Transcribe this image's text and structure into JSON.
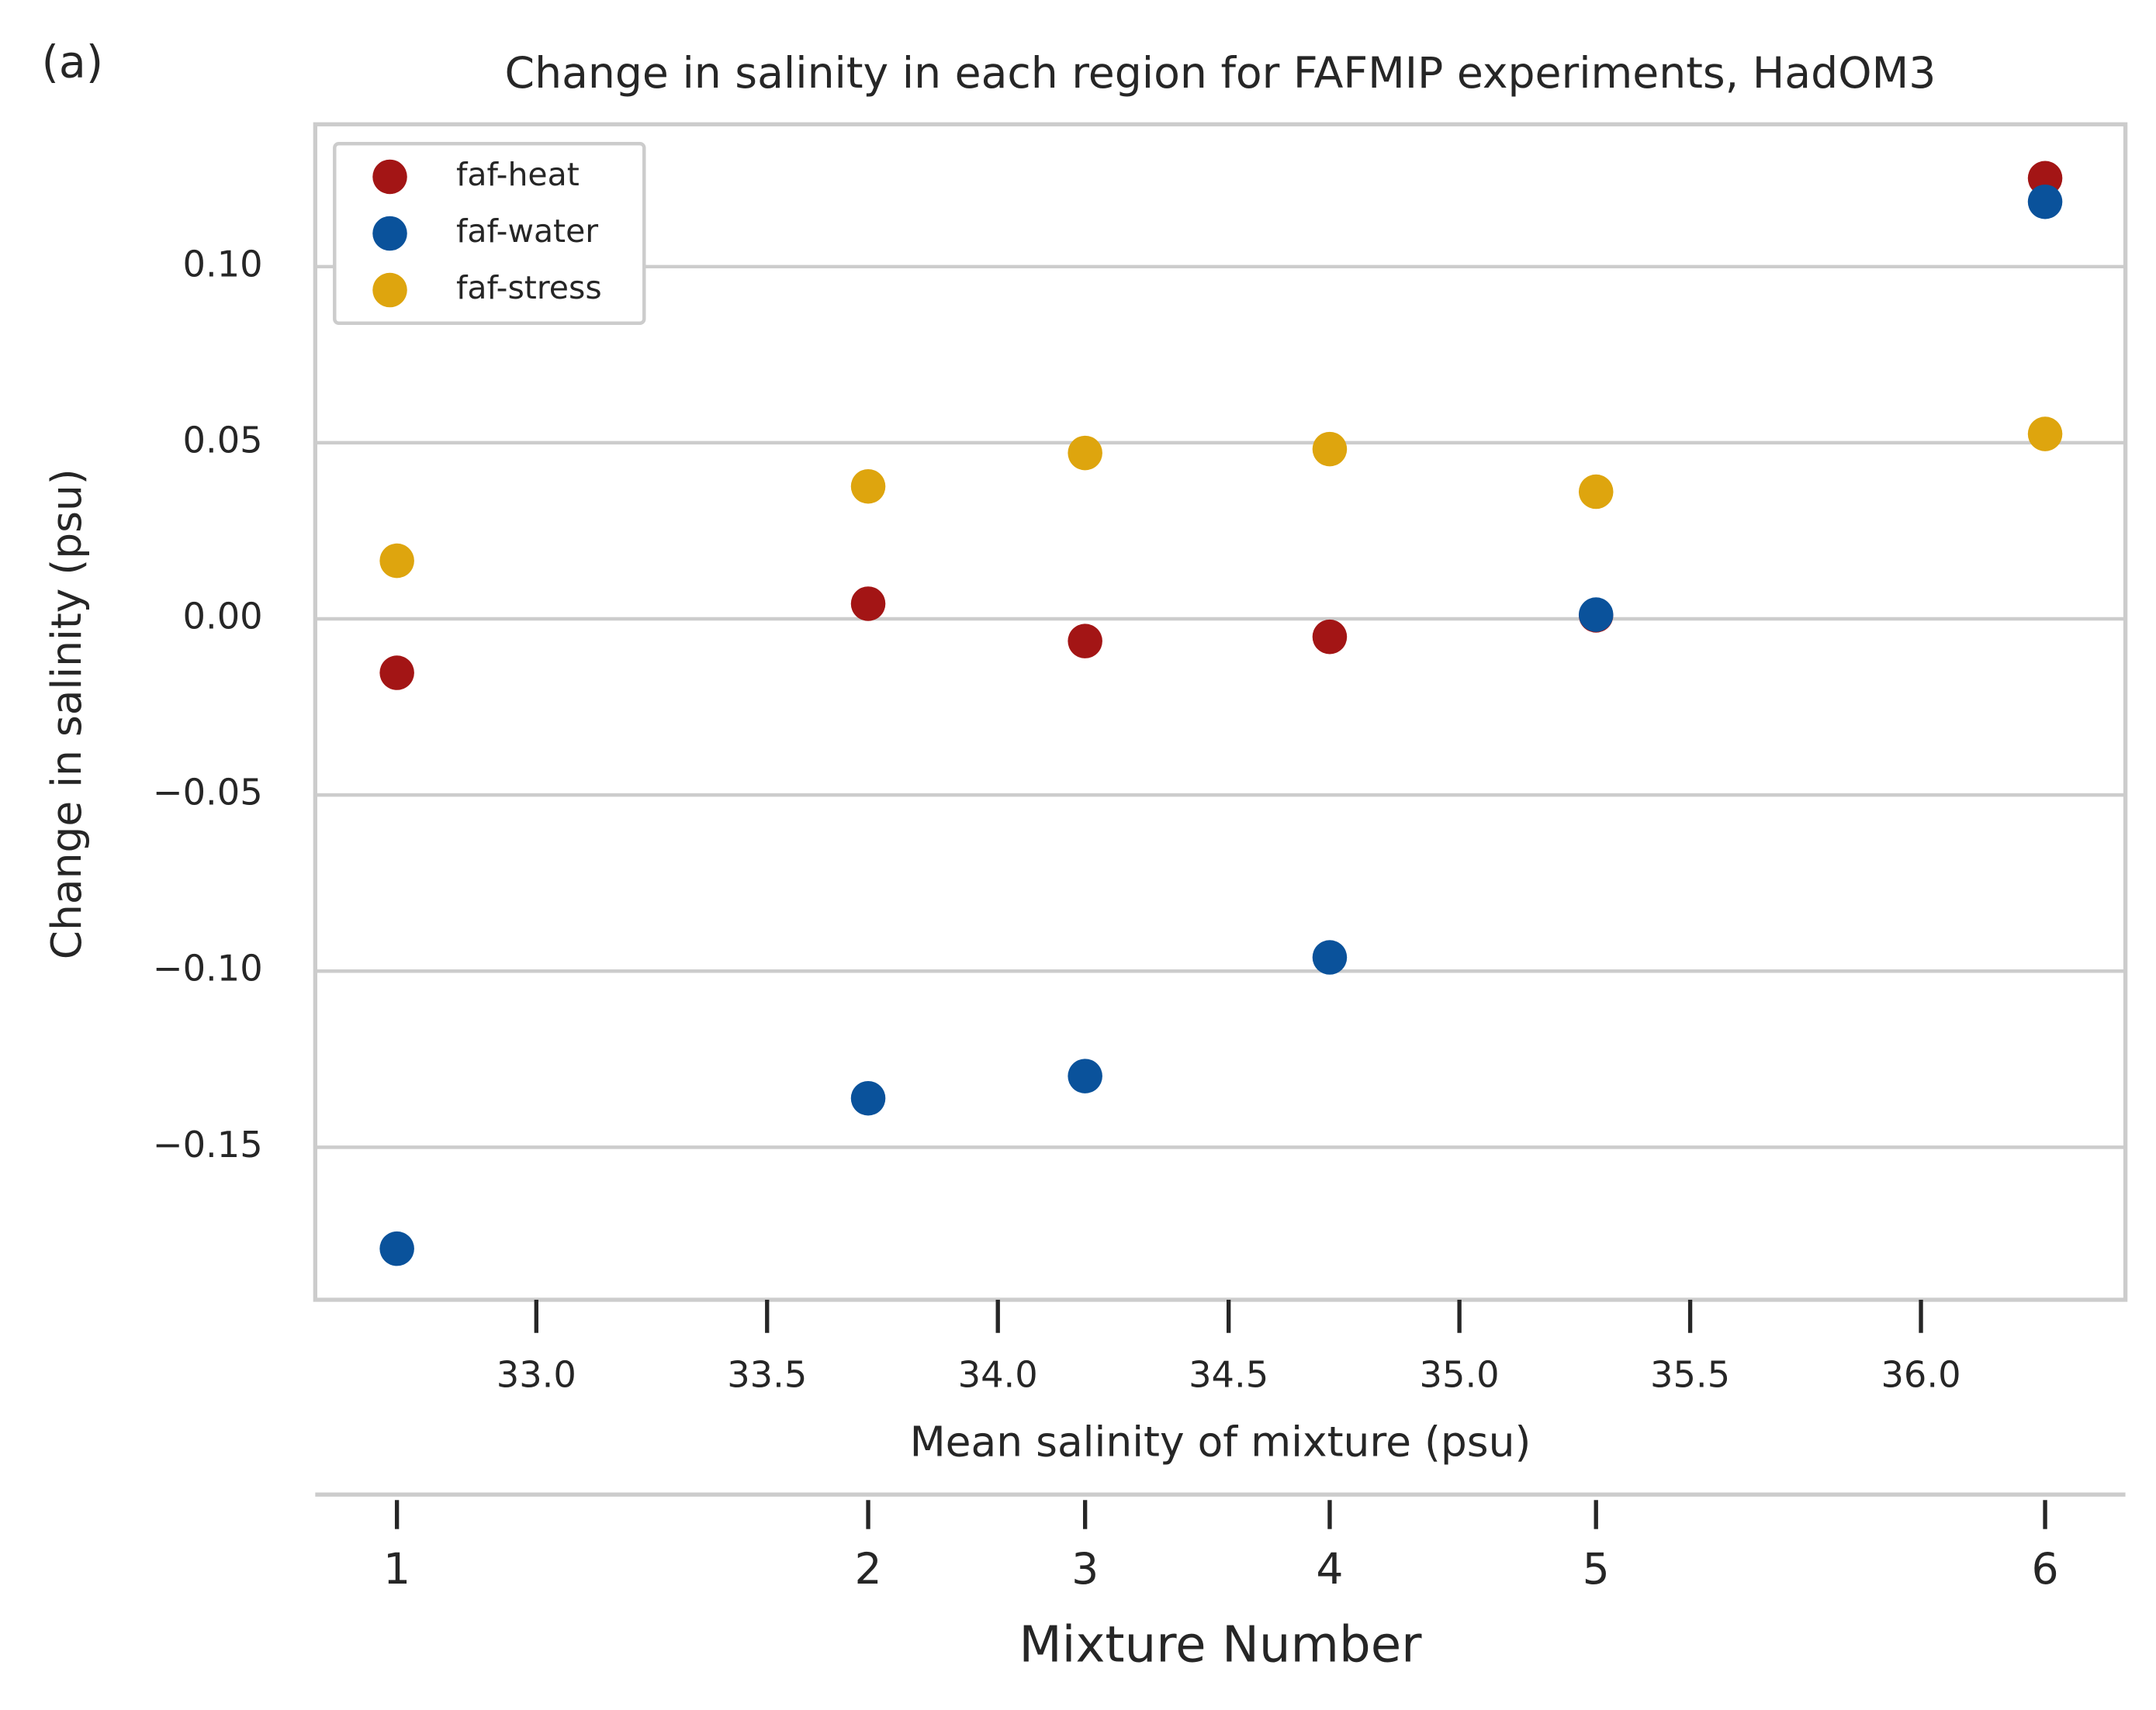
{
  "chart_data": {
    "type": "scatter",
    "panel_label": "(a)",
    "title": "Change in salinity in each region for FAFMIP experiments, HadOM3",
    "xlabel": "Mean salinity of mixture (psu)",
    "ylabel": "Change in salinity (psu)",
    "x2label": "Mixture Number",
    "x": [
      32.698,
      33.719,
      34.189,
      34.719,
      35.296,
      36.269
    ],
    "series": [
      {
        "name": "faf-heat",
        "color": "#a31515",
        "values": [
          -0.0153,
          0.0043,
          -0.0063,
          -0.0051,
          0.001,
          0.1251
        ]
      },
      {
        "name": "faf-water",
        "color": "#0a529b",
        "values": [
          -0.1788,
          -0.1361,
          -0.1298,
          -0.0961,
          0.0012,
          0.1184
        ]
      },
      {
        "name": "faf-stress",
        "color": "#dea50e",
        "values": [
          0.0165,
          0.0376,
          0.0471,
          0.0482,
          0.0361,
          0.0525
        ]
      }
    ],
    "xlim": [
      32.521,
      36.443
    ],
    "ylim": [
      -0.1933,
      0.1404
    ],
    "xticks": [
      {
        "value": 33.0,
        "label": "33.0"
      },
      33.5,
      {
        "value": 34.0,
        "label": "34.0"
      },
      34.5,
      {
        "value": 35.0,
        "label": "35.0"
      },
      35.5,
      {
        "value": 36.0,
        "label": "36.0"
      }
    ],
    "yticks": [
      {
        "value": -0.15,
        "label": "−0.15"
      },
      {
        "value": -0.1,
        "label": "−0.10"
      },
      {
        "value": -0.05,
        "label": "−0.05"
      },
      {
        "value": 0,
        "label": "0.00"
      },
      0.05,
      {
        "value": 0.1,
        "label": "0.10"
      }
    ],
    "x2ticks": [
      {
        "value": 32.698,
        "label": "1"
      },
      {
        "value": 33.719,
        "label": "2"
      },
      {
        "value": 34.189,
        "label": "3"
      },
      {
        "value": 34.719,
        "label": "4"
      },
      {
        "value": 35.296,
        "label": "5"
      },
      {
        "value": 36.269,
        "label": "6"
      }
    ],
    "grid": true,
    "legend": "upper left"
  }
}
